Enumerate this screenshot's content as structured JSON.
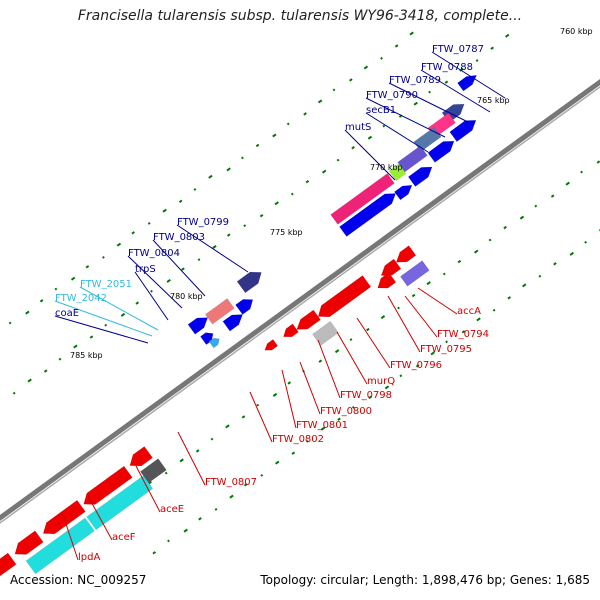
{
  "title": "Francisella tularensis subsp. tularensis WY96-3418, complete...",
  "accession_text": "Accession: NC_009257",
  "stats_text": "Topology: circular; Length: 1,898,476 bp; Genes: 1,685",
  "colors": {
    "forward_blue": "#0000ee",
    "reverse_red": "#ee0000",
    "cyan_gene": "#22dddd",
    "backbone": "#777777",
    "gc_dots": "#007700",
    "label_blue": "#00008b",
    "label_cyan": "#33bbdd",
    "label_red": "#cc0000"
  },
  "kbp_ticks": [
    "760 kbp",
    "765 kbp",
    "770 kbp",
    "775 kbp",
    "780 kbp",
    "785 kbp"
  ],
  "forward_labels": [
    "FTW_0787",
    "FTW_0788",
    "FTW_0789",
    "FTW_0790",
    "secB1",
    "mutS",
    "FTW_0799",
    "FTW_0803",
    "FTW_0804",
    "trpS",
    "FTW_2051",
    "FTW_2042",
    "coaE"
  ],
  "reverse_labels": [
    "accA",
    "FTW_0794",
    "FTW_0795",
    "FTW_0796",
    "murQ",
    "FTW_0798",
    "FTW_0800",
    "FTW_0801",
    "FTW_0802",
    "FTW_0807",
    "aceE",
    "aceF",
    "lpdA"
  ]
}
